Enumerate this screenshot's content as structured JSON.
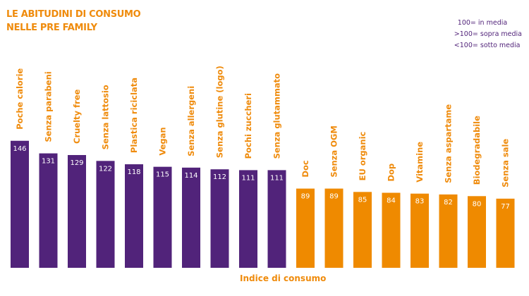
{
  "title_lines": [
    "LE ABITUDINI DI CONSUMO",
    "NELLE PRE FAMILY"
  ],
  "legend": [
    "100= in media",
    ">100= sopra media",
    "<100= sotto media"
  ],
  "colors": {
    "above": "#51237a",
    "below": "#ef8a00",
    "label": "#ef8b0c"
  },
  "chart_data": {
    "type": "bar",
    "title": "LE ABITUDINI DI CONSUMO NELLE PRE FAMILY",
    "xlabel": "Indice di consumo",
    "ylabel": "",
    "categories": [
      "Poche calorie",
      "Senza parabeni",
      "Cruelty free",
      "Senza lattosio",
      "Plastica riciclata",
      "Vegan",
      "Senza allergeni",
      "Senza glutine (logo)",
      "Pochi zuccheri",
      "Senza glutammato",
      "Doc",
      "Senza OGM",
      "EU organic",
      "Dop",
      "Vitamine",
      "Senza aspartame",
      "Biodegradabile",
      "Senza sale"
    ],
    "values": [
      146,
      131,
      129,
      122,
      118,
      115,
      114,
      112,
      111,
      111,
      89,
      89,
      85,
      84,
      83,
      82,
      80,
      77
    ],
    "reference": 100,
    "grid": false
  }
}
